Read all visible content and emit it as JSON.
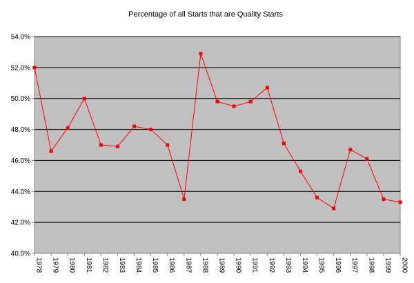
{
  "chart_data": {
    "type": "line",
    "title": "Percentage of all Starts that are Quality Starts",
    "xlabel": "",
    "ylabel": "",
    "categories": [
      "1978",
      "1979",
      "1980",
      "1981",
      "1982",
      "1983",
      "1984",
      "1985",
      "1986",
      "1987",
      "1988",
      "1989",
      "1990",
      "1991",
      "1992",
      "1993",
      "1994",
      "1995",
      "1996",
      "1997",
      "1998",
      "1999",
      "2000"
    ],
    "series": [
      {
        "values": [
          52.0,
          46.6,
          48.1,
          50.0,
          47.0,
          46.9,
          48.2,
          48.0,
          47.0,
          43.5,
          52.9,
          49.8,
          49.5,
          49.8,
          50.7,
          47.1,
          45.3,
          43.6,
          42.9,
          46.7,
          46.1,
          43.5,
          43.3
        ],
        "color": "#ff0000"
      }
    ],
    "ylim": [
      40.0,
      54.0
    ],
    "y_ticks": [
      "40.0%",
      "42.0%",
      "44.0%",
      "46.0%",
      "48.0%",
      "50.0%",
      "52.0%",
      "54.0%"
    ],
    "y_tick_values": [
      40,
      42,
      44,
      46,
      48,
      50,
      52,
      54
    ],
    "grid": true,
    "legend": "none",
    "plot_background": "#c0c0c0",
    "gridline_color": "#000000"
  }
}
